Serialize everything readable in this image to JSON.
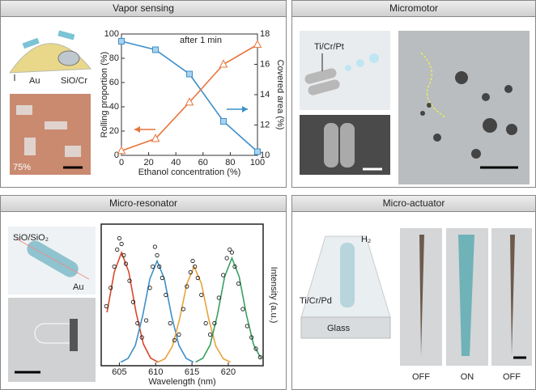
{
  "panels": [
    {
      "title": "Vapor sensing",
      "labels": [
        "Au",
        "SiO/Cr",
        "75%"
      ],
      "chart_data": {
        "type": "line",
        "annotation": "after 1 min",
        "xlabel": "Ethanol concentration (%)",
        "ylabel": "Rolling proportion (%)",
        "y2label": "Covered area (%)",
        "x": [
          0,
          25,
          50,
          75,
          100
        ],
        "xlim": [
          0,
          100
        ],
        "xticks": [
          0,
          20,
          40,
          60,
          80,
          100
        ],
        "ylim": [
          0,
          100
        ],
        "yticks": [
          0,
          20,
          40,
          60,
          80,
          100
        ],
        "y2lim": [
          10,
          18
        ],
        "y2ticks": [
          10,
          12,
          14,
          16,
          18
        ],
        "series": [
          {
            "color": "#3d8fc9",
            "marker": "square",
            "values": [
              94,
              87,
              67,
              28,
              3
            ]
          },
          {
            "color": "#e8743b",
            "marker": "triangle",
            "axis": "y2",
            "values": [
              10.3,
              11.1,
              13.5,
              16.0,
              17.3
            ]
          }
        ]
      }
    },
    {
      "title": "Micromotor",
      "labels": [
        "Ti/Cr/Pt"
      ]
    },
    {
      "title": "Micro-resonator",
      "labels": [
        "SiO/SiO₂",
        "Au"
      ],
      "chart_data": {
        "type": "spectrum",
        "xlabel": "Wavelength (nm)",
        "ylabel": "Intensity (a.u.)",
        "xlim": [
          602.5,
          624.8
        ],
        "xticks": [
          605,
          610,
          615,
          620
        ],
        "ylim": [
          0,
          1
        ],
        "series": [
          {
            "color": "#d9472b",
            "x": [
              603.3,
              604.3,
              605.3,
              606.3,
              607.3,
              608.3,
              609.3,
              610.3
            ],
            "values": [
              0.377,
              0.662,
              0.8,
              0.662,
              0.377,
              0.154,
              0.054,
              0.026
            ]
          },
          {
            "color": "#3d8fc9",
            "x": [
              605.2,
              606.2,
              607.2,
              608.2,
              609.2,
              610.2,
              611.2,
              612.2,
              613.2,
              614.2,
              615.2
            ],
            "values": [
              0.025,
              0.052,
              0.144,
              0.35,
              0.613,
              0.74,
              0.613,
              0.35,
              0.144,
              0.052,
              0.025
            ]
          },
          {
            "color": "#e8a33d",
            "x": [
              610.3,
              611.3,
              612.3,
              613.3,
              614.3,
              615.3,
              616.3,
              617.3,
              618.3,
              619.3,
              620.3
            ],
            "values": [
              0.025,
              0.05,
              0.137,
              0.331,
              0.58,
              0.7,
              0.58,
              0.331,
              0.137,
              0.05,
              0.025
            ]
          },
          {
            "color": "#3aa062",
            "x": [
              615.5,
              616.5,
              617.5,
              618.5,
              619.5,
              620.5,
              621.5,
              622.5,
              623.5,
              624.5
            ],
            "values": [
              0.026,
              0.053,
              0.147,
              0.359,
              0.629,
              0.76,
              0.629,
              0.359,
              0.147,
              0.053
            ]
          }
        ],
        "points": {
          "x": [
            603.2,
            603.8,
            604.3,
            604.7,
            605.0,
            605.3,
            605.6,
            605.9,
            606.4,
            606.9,
            607.5,
            608.1,
            608.7,
            609.2,
            609.6,
            609.9,
            610.2,
            610.5,
            610.9,
            611.4,
            612.0,
            612.6,
            613.2,
            613.8,
            614.3,
            614.8,
            615.1,
            615.4,
            615.8,
            616.3,
            616.9,
            617.5,
            618.1,
            618.7,
            619.3,
            619.8,
            620.2,
            620.5,
            620.9,
            621.4,
            622.0,
            622.6,
            623.2,
            623.8,
            624.4
          ],
          "values": [
            0.42,
            0.55,
            0.7,
            0.82,
            0.9,
            0.86,
            0.78,
            0.72,
            0.6,
            0.45,
            0.3,
            0.2,
            0.32,
            0.55,
            0.7,
            0.84,
            0.78,
            0.7,
            0.62,
            0.5,
            0.3,
            0.18,
            0.22,
            0.4,
            0.56,
            0.66,
            0.74,
            0.7,
            0.62,
            0.5,
            0.3,
            0.22,
            0.3,
            0.48,
            0.64,
            0.76,
            0.82,
            0.8,
            0.7,
            0.58,
            0.4,
            0.28,
            0.2,
            0.12,
            0.06
          ]
        }
      }
    },
    {
      "title": "Micro-actuator",
      "labels": [
        "H₂",
        "Ti/Cr/Pd",
        "Glass",
        "OFF",
        "ON",
        "OFF"
      ]
    }
  ]
}
